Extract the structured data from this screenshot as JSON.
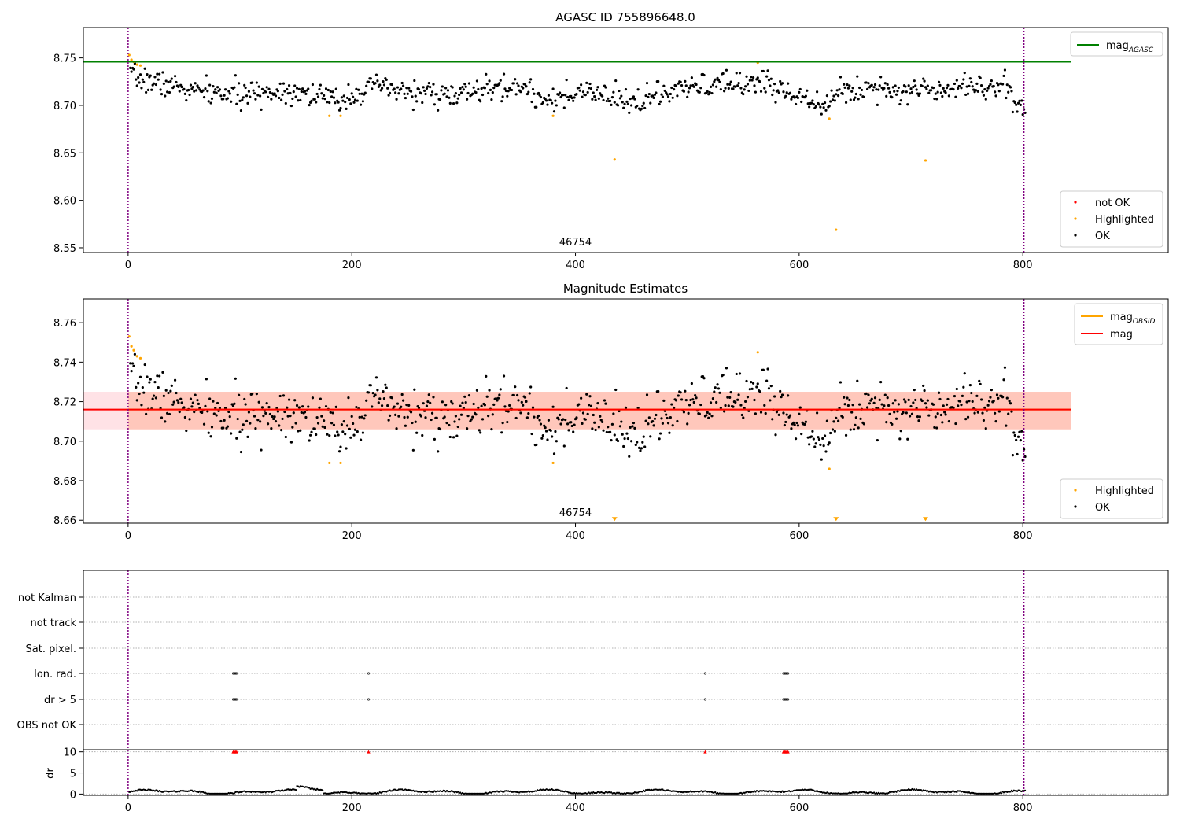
{
  "chart_data": [
    {
      "type": "scatter",
      "title": "AGASC ID 755896648.0",
      "xlim": [
        -40,
        930
      ],
      "ylim": [
        8.545,
        8.782
      ],
      "xticks": [
        0,
        200,
        400,
        600,
        800
      ],
      "yticks": [
        8.55,
        8.6,
        8.65,
        8.7,
        8.75
      ],
      "annotation": "46754",
      "hlines": [
        {
          "name": "mag",
          "sub": "AGASC",
          "value": 8.746,
          "color": "#008000"
        }
      ],
      "vlines": [
        0,
        801
      ],
      "legend_lines": [
        {
          "name": "mag",
          "sub": "AGASC",
          "color": "#008000"
        }
      ],
      "legend_points": [
        {
          "name": "not OK",
          "color": "#ff0000"
        },
        {
          "name": "Highlighted",
          "color": "#ffa500"
        },
        {
          "name": "OK",
          "color": "#000000"
        }
      ],
      "series": [
        {
          "name": "Highlighted",
          "color": "#ffa500",
          "x": [
            1,
            3,
            5,
            8,
            11,
            180,
            190,
            380,
            435,
            563,
            627,
            633,
            713
          ],
          "y": [
            8.753,
            8.748,
            8.746,
            8.743,
            8.742,
            8.689,
            8.689,
            8.689,
            8.643,
            8.745,
            8.686,
            8.569,
            8.642
          ]
        },
        {
          "name": "OK",
          "color": "#000000",
          "segments": [
            {
              "x0": 2,
              "x1": 50,
              "y0": 8.73,
              "y1": 8.718
            },
            {
              "x0": 50,
              "x1": 110,
              "y0": 8.716,
              "y1": 8.71
            },
            {
              "x0": 110,
              "x1": 150,
              "y0": 8.713,
              "y1": 8.716
            },
            {
              "x0": 150,
              "x1": 190,
              "y0": 8.716,
              "y1": 8.704
            },
            {
              "x0": 190,
              "x1": 230,
              "y0": 8.708,
              "y1": 8.722
            },
            {
              "x0": 230,
              "x1": 300,
              "y0": 8.716,
              "y1": 8.71
            },
            {
              "x0": 300,
              "x1": 360,
              "y0": 8.714,
              "y1": 8.72
            },
            {
              "x0": 360,
              "x1": 400,
              "y0": 8.71,
              "y1": 8.706
            },
            {
              "x0": 400,
              "x1": 450,
              "y0": 8.716,
              "y1": 8.702
            },
            {
              "x0": 450,
              "x1": 520,
              "y0": 8.704,
              "y1": 8.722
            },
            {
              "x0": 520,
              "x1": 575,
              "y0": 8.72,
              "y1": 8.726
            },
            {
              "x0": 575,
              "x1": 630,
              "y0": 8.718,
              "y1": 8.702
            },
            {
              "x0": 630,
              "x1": 680,
              "y0": 8.712,
              "y1": 8.722
            },
            {
              "x0": 680,
              "x1": 740,
              "y0": 8.714,
              "y1": 8.72
            },
            {
              "x0": 740,
              "x1": 790,
              "y0": 8.724,
              "y1": 8.716
            },
            {
              "x0": 790,
              "x1": 802,
              "y0": 8.706,
              "y1": 8.702
            }
          ]
        }
      ]
    },
    {
      "type": "scatter",
      "title": "Magnitude Estimates",
      "xlim": [
        -40,
        930
      ],
      "ylim": [
        8.6585,
        8.772
      ],
      "xticks": [
        0,
        200,
        400,
        600,
        800
      ],
      "yticks": [
        8.66,
        8.68,
        8.7,
        8.72,
        8.74,
        8.76
      ],
      "annotation": "46754",
      "hlines": [
        {
          "name": "mag",
          "sub": "OBSID",
          "value": 8.716,
          "color": "#ffa500"
        },
        {
          "name": "mag",
          "sub": "",
          "value": 8.716,
          "color": "#ff0000"
        }
      ],
      "bands": [
        {
          "x0": -40,
          "x1": 843,
          "y0": 8.706,
          "y1": 8.725,
          "color": "#ffb6c1",
          "opacity": 0.4
        },
        {
          "x0": 0,
          "x1": 843,
          "y0": 8.706,
          "y1": 8.725,
          "color": "#ffa07a",
          "opacity": 0.4
        }
      ],
      "vlines": [
        0,
        801
      ],
      "legend_lines": [
        {
          "name": "mag",
          "sub": "OBSID",
          "color": "#ffa500"
        },
        {
          "name": "mag",
          "sub": "",
          "color": "#ff0000"
        }
      ],
      "legend_points": [
        {
          "name": "Highlighted",
          "color": "#ffa500"
        },
        {
          "name": "OK",
          "color": "#000000"
        }
      ],
      "series": [
        {
          "name": "Highlighted",
          "color": "#ffa500",
          "x": [
            1,
            3,
            5,
            8,
            11,
            180,
            190,
            380,
            563,
            627
          ],
          "y": [
            8.753,
            8.748,
            8.746,
            8.743,
            8.742,
            8.689,
            8.689,
            8.689,
            8.745,
            8.686
          ]
        },
        {
          "name": "Highlighted (off-scale)",
          "color": "#ffa500",
          "marker": "triangle-down",
          "x": [
            435,
            633,
            713
          ],
          "y": [
            8.66,
            8.66,
            8.66
          ]
        }
      ]
    },
    {
      "type": "scatter",
      "title": "",
      "xlim": [
        -40,
        930
      ],
      "xticks": [
        0,
        200,
        400,
        600,
        800
      ],
      "vlines": [
        0,
        801
      ],
      "flag_rows": [
        "not Kalman",
        "not track",
        "Sat. pixel.",
        "Ion. rad.",
        "dr > 5",
        "OBS not OK"
      ],
      "flags": [
        {
          "row": "Ion. rad.",
          "x": [
            94,
            95,
            96,
            97,
            215,
            516,
            586,
            587,
            588,
            589,
            590
          ]
        },
        {
          "row": "dr > 5",
          "x": [
            94,
            95,
            96,
            97,
            215,
            516,
            586,
            587,
            588,
            589,
            590
          ]
        }
      ],
      "dr_panel": {
        "ylabel": "dr",
        "yticks": [
          0,
          5,
          10
        ],
        "ylim": [
          -0.3,
          10.5
        ],
        "clipped_x": [
          94,
          95,
          96,
          97,
          215,
          516,
          586,
          587,
          588,
          589,
          590
        ]
      }
    }
  ]
}
